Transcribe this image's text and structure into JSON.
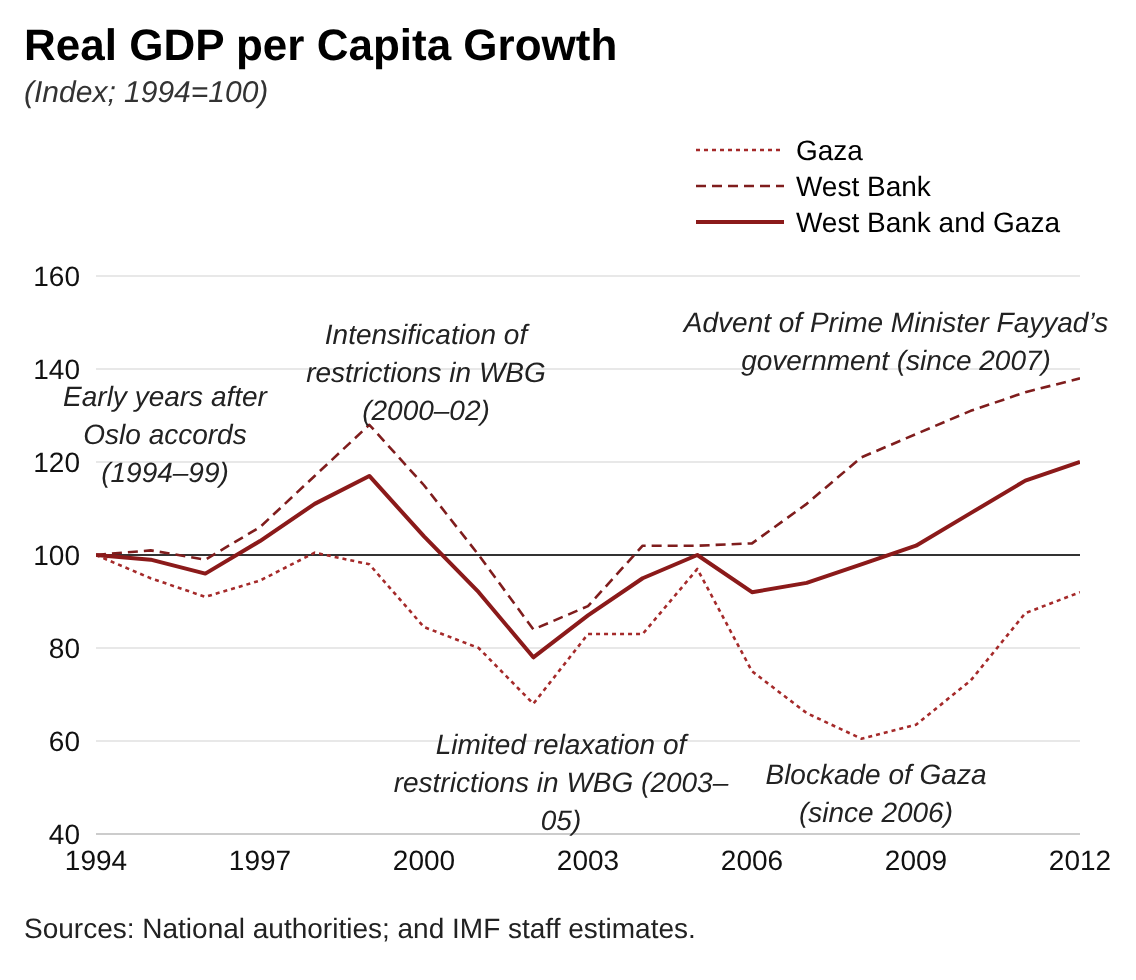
{
  "chart_data": {
    "type": "line",
    "title": "Real GDP per Capita Growth",
    "subtitle": "(Index; 1994=100)",
    "x": [
      1994,
      1995,
      1996,
      1997,
      1998,
      1999,
      2000,
      2001,
      2002,
      2003,
      2004,
      2005,
      2006,
      2007,
      2008,
      2009,
      2010,
      2011,
      2012
    ],
    "series": [
      {
        "name": "Gaza",
        "color": "#a52a2a",
        "line_style": "dotted",
        "values": [
          100,
          95,
          91,
          94.5,
          100.5,
          98,
          84.5,
          80,
          68,
          83,
          83,
          97,
          75,
          66,
          60.5,
          63.5,
          73,
          87.5,
          92
        ]
      },
      {
        "name": "West Bank",
        "color": "#7f1d1d",
        "line_style": "dashed",
        "values": [
          100,
          101,
          99,
          106,
          117,
          128,
          115,
          100,
          84,
          89,
          102,
          102,
          102.5,
          111,
          121,
          126,
          131,
          135,
          138
        ]
      },
      {
        "name": "West Bank and Gaza",
        "color": "#8b1a1a",
        "line_style": "solid",
        "values": [
          100,
          99,
          96,
          103,
          111,
          117,
          104,
          92,
          78,
          87,
          95,
          100,
          92,
          94,
          98,
          102,
          109,
          116,
          120
        ]
      }
    ],
    "xlim": [
      1994,
      2012
    ],
    "xticks": [
      1994,
      1997,
      2000,
      2003,
      2006,
      2009,
      2012
    ],
    "ylim": [
      40,
      160
    ],
    "yticks": [
      40,
      60,
      80,
      100,
      120,
      140,
      160
    ],
    "grid": "y",
    "legend": "top right",
    "marker": "none",
    "ref_lines": [
      {
        "axis": "y",
        "value": 100,
        "label": null,
        "color": "#333333"
      }
    ],
    "annotations": [
      "Early years after Oslo accords (1994–99)",
      "Intensification of restrictions in WBG (2000–02)",
      "Limited relaxation of restrictions in WBG (2003–05)",
      "Advent of Prime Minister Fayyad’s government (since 2007)",
      "Blockade of Gaza (since 2006)",
      "Sources: National authorities; and IMF staff estimates."
    ]
  }
}
